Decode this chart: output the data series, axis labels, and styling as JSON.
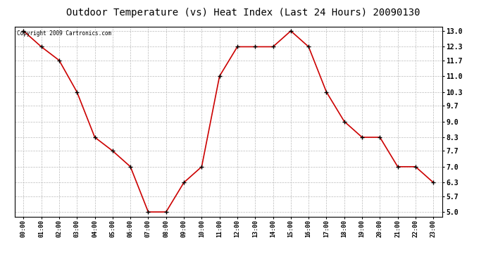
{
  "title": "Outdoor Temperature (vs) Heat Index (Last 24 Hours) 20090130",
  "copyright_text": "Copyright 2009 Cartronics.com",
  "x_labels": [
    "00:00",
    "01:00",
    "02:00",
    "03:00",
    "04:00",
    "05:00",
    "06:00",
    "07:00",
    "08:00",
    "09:00",
    "10:00",
    "11:00",
    "12:00",
    "13:00",
    "14:00",
    "15:00",
    "16:00",
    "17:00",
    "18:00",
    "19:00",
    "20:00",
    "21:00",
    "22:00",
    "23:00"
  ],
  "y_values": [
    13.0,
    12.3,
    11.7,
    10.3,
    8.3,
    7.7,
    7.0,
    5.0,
    5.0,
    6.3,
    7.0,
    11.0,
    12.3,
    12.3,
    12.3,
    13.0,
    12.3,
    10.3,
    9.0,
    8.3,
    8.3,
    7.0,
    7.0,
    6.3
  ],
  "y_ticks": [
    5.0,
    5.7,
    6.3,
    7.0,
    7.7,
    8.3,
    9.0,
    9.7,
    10.3,
    11.0,
    11.7,
    12.3,
    13.0
  ],
  "ylim": [
    4.8,
    13.2
  ],
  "line_color": "#cc0000",
  "marker": "+",
  "marker_color": "#000000",
  "bg_color": "#ffffff",
  "grid_color": "#bbbbbb",
  "title_fontsize": 10,
  "tick_fontsize": 6,
  "ytick_fontsize": 7,
  "copyright_fontsize": 5.5
}
